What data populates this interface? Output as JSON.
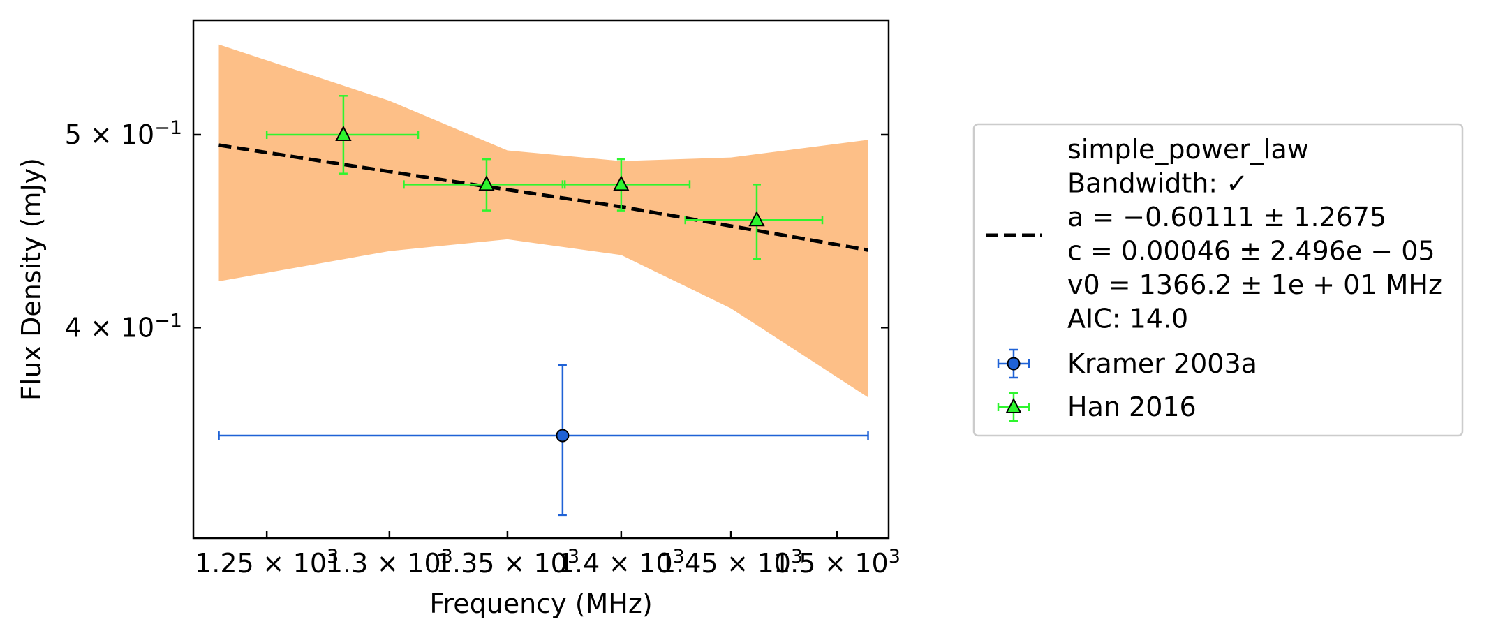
{
  "chart_data": {
    "type": "scatter",
    "title": "",
    "xlabel": "Frequency (MHz)",
    "ylabel": "Flux Density (mJy)",
    "x_scale": "log",
    "y_scale": "log",
    "xlim": [
      1221,
      1525
    ],
    "ylim": [
      0.3135,
      0.5708
    ],
    "grid": false,
    "legend_position": "right outside",
    "x_ticks": [
      {
        "value": 1250,
        "mantissa": "1.25",
        "exp": "3"
      },
      {
        "value": 1300,
        "mantissa": "1.3",
        "exp": "3"
      },
      {
        "value": 1350,
        "mantissa": "1.35",
        "exp": "3"
      },
      {
        "value": 1400,
        "mantissa": "1.4",
        "exp": "3"
      },
      {
        "value": 1450,
        "mantissa": "1.45",
        "exp": "3"
      },
      {
        "value": 1500,
        "mantissa": "1.5",
        "exp": "3"
      }
    ],
    "y_ticks": [
      {
        "value": 0.4,
        "mantissa": "4",
        "exp": "−1"
      },
      {
        "value": 0.5,
        "mantissa": "5",
        "exp": "−1"
      }
    ],
    "fit": {
      "name": "simple_power_law",
      "line_color": "#000000",
      "band_color": "#fdbf87",
      "line_x": [
        1231,
        1330,
        1400,
        1515
      ],
      "line_y": [
        0.494,
        0.473,
        0.46,
        0.4375
      ],
      "band_x": [
        1231,
        1300,
        1350,
        1400,
        1450,
        1515
      ],
      "band_upper": [
        0.555,
        0.52,
        0.491,
        0.485,
        0.487,
        0.497
      ],
      "band_lower": [
        0.422,
        0.437,
        0.443,
        0.435,
        0.409,
        0.369
      ]
    },
    "series": [
      {
        "name": "Kramer 2003a",
        "marker": "circle",
        "color": "#1f62d6",
        "points": [
          {
            "x": 1374,
            "y": 0.353,
            "xerr_lo": 1231,
            "xerr_hi": 1515,
            "yerr_lo": 0.322,
            "yerr_hi": 0.383
          }
        ]
      },
      {
        "name": "Han 2016",
        "marker": "triangle",
        "color": "#2ef52e",
        "points": [
          {
            "x": 1281,
            "y": 0.5,
            "xerr_lo": 1250,
            "xerr_hi": 1312,
            "yerr_lo": 0.478,
            "yerr_hi": 0.523
          },
          {
            "x": 1341,
            "y": 0.472,
            "xerr_lo": 1306,
            "xerr_hi": 1375,
            "yerr_lo": 0.458,
            "yerr_hi": 0.486
          },
          {
            "x": 1400,
            "y": 0.472,
            "xerr_lo": 1374,
            "xerr_hi": 1431,
            "yerr_lo": 0.458,
            "yerr_hi": 0.486
          },
          {
            "x": 1462,
            "y": 0.453,
            "xerr_lo": 1429,
            "xerr_hi": 1493,
            "yerr_lo": 0.433,
            "yerr_hi": 0.472
          }
        ]
      }
    ],
    "legend": {
      "fit_lines": [
        "simple_power_law",
        "Bandwidth: ✓",
        "a = −0.60111 ± 1.2675",
        "c = 0.00046 ± 2.496e − 05",
        "v0 = 1366.2 ± 1e + 01 MHz",
        "AIC: 14.0"
      ],
      "entries": [
        "Kramer 2003a",
        "Han 2016"
      ]
    }
  }
}
